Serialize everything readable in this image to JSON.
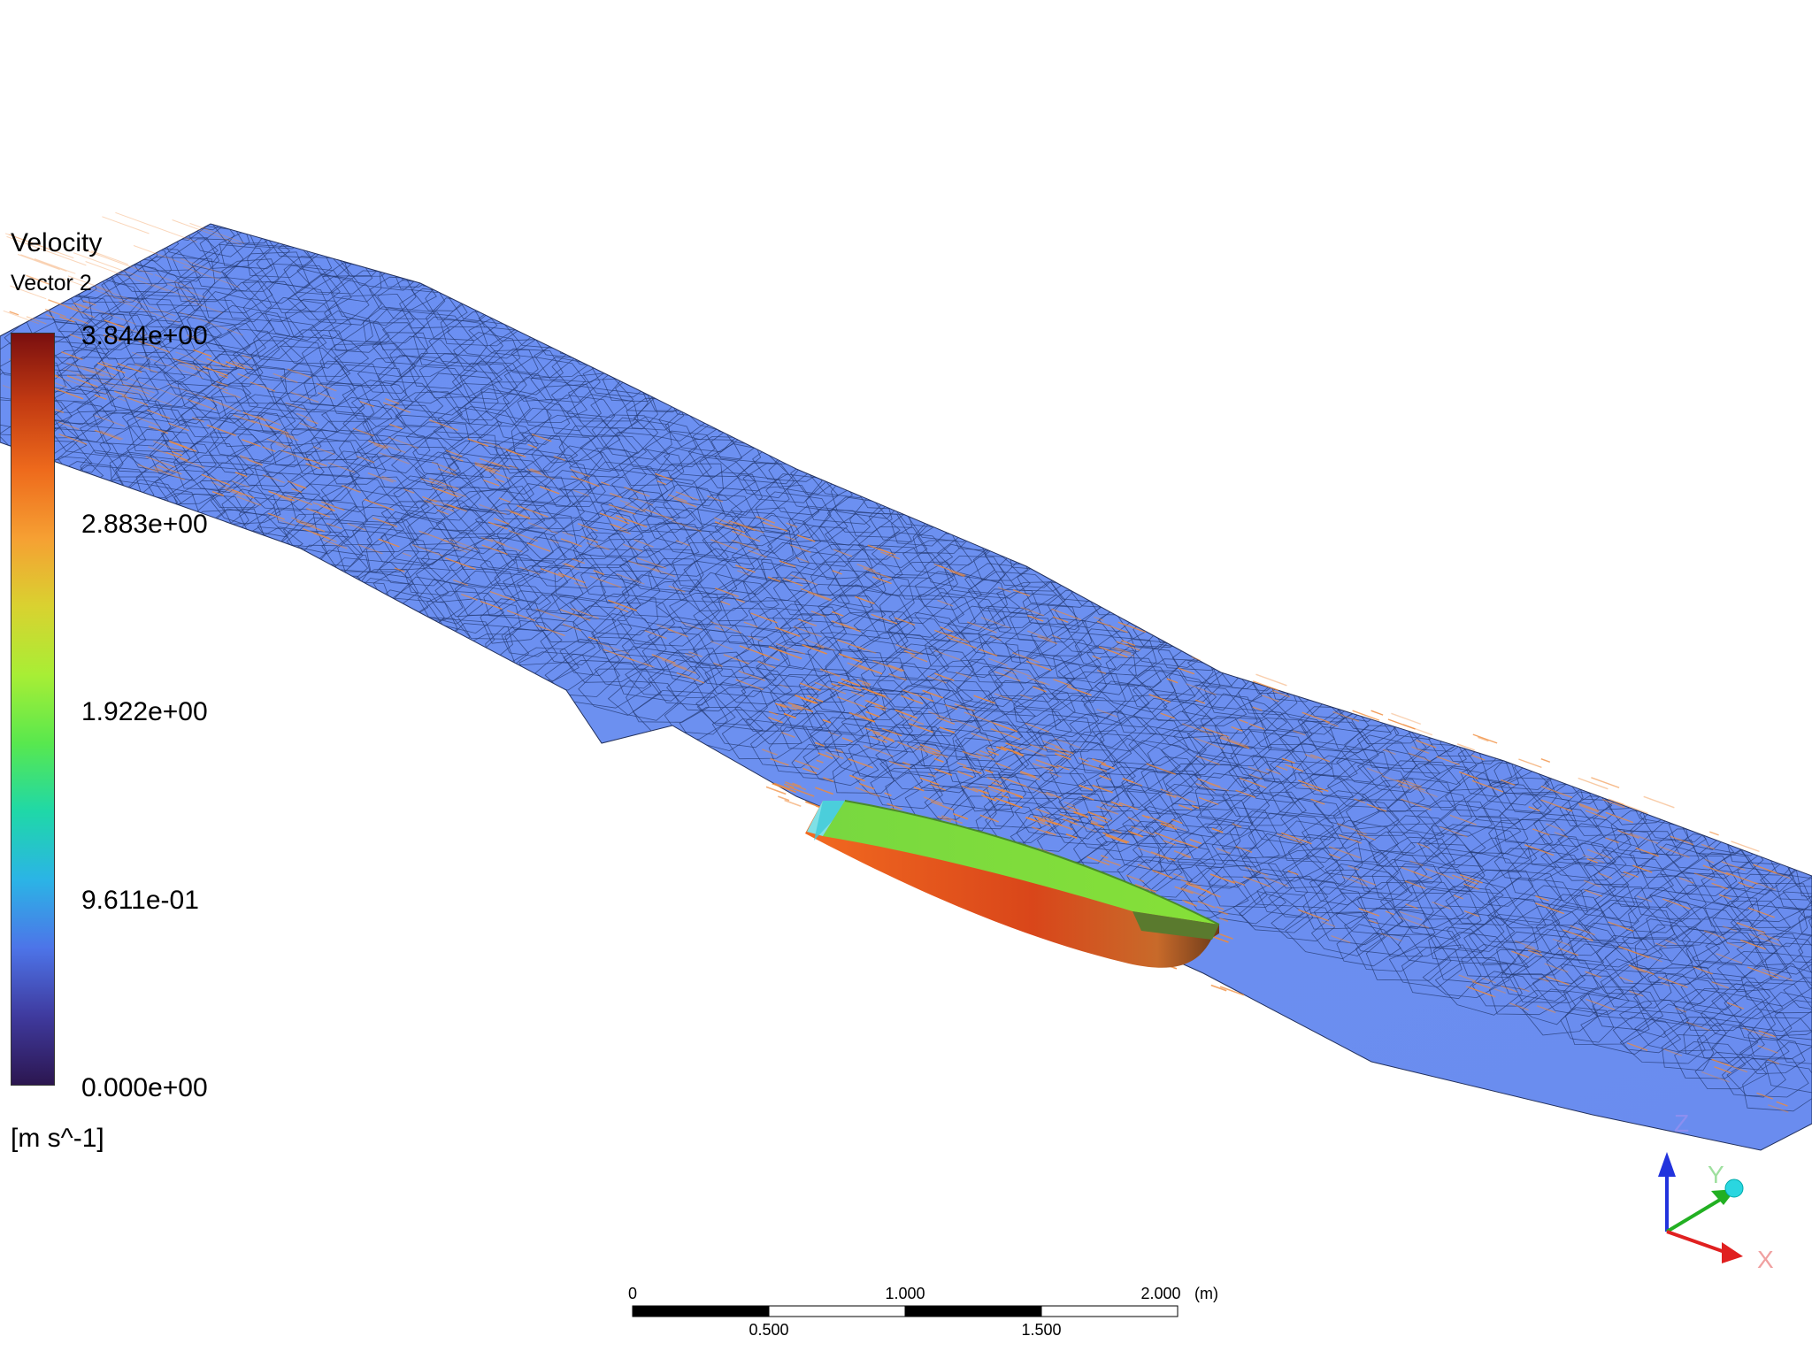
{
  "legend": {
    "title": "Velocity",
    "subtitle": "Vector 2",
    "labels": [
      "3.844e+00",
      "2.883e+00",
      "1.922e+00",
      "9.611e-01",
      "0.000e+00"
    ],
    "unit": "[m s^-1]",
    "colormap": [
      "#7a0f0f",
      "#c23a12",
      "#ee6a1c",
      "#f6a033",
      "#d9d230",
      "#a8ee35",
      "#58e84e",
      "#1fd8a8",
      "#2bb4e6",
      "#4d74e8",
      "#3f3a9e",
      "#2c1650"
    ]
  },
  "scale_bar": {
    "top_labels": [
      "0",
      "1.000",
      "2.000"
    ],
    "bottom_labels": [
      "0.500",
      "1.500"
    ],
    "unit": "(m)"
  },
  "triad": {
    "x_label": "X",
    "y_label": "Y",
    "z_label": "Z",
    "x_color": "#e02020",
    "y_color": "#22b022",
    "z_color": "#2233dd"
  },
  "colors": {
    "surface": "#6a8ff2",
    "mesh": "#243a72",
    "vector": "#f08a38",
    "hull_top": "#7edc3c",
    "hull_side": "#e0581c"
  }
}
